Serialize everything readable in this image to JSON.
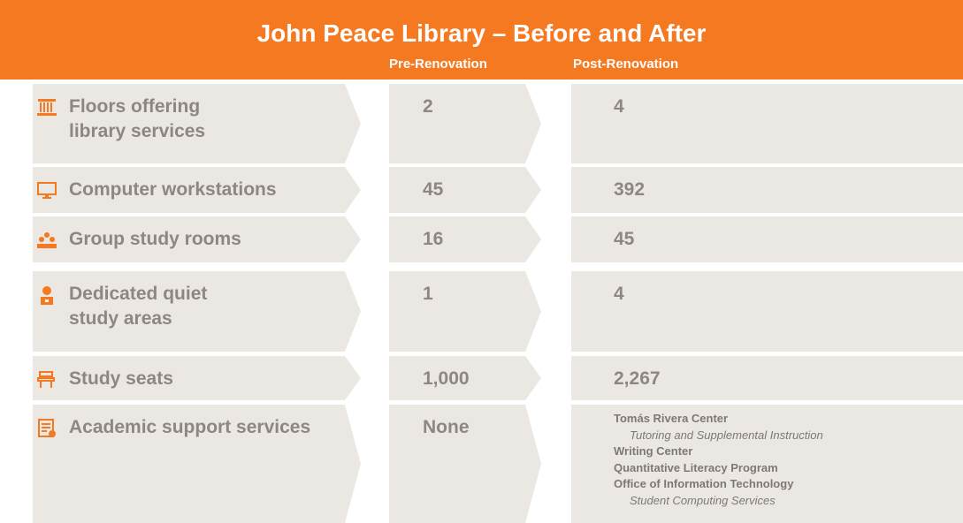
{
  "title": "John Peace Library – Before and After",
  "columns": [
    "Pre-Renovation",
    "Post-Renovation"
  ],
  "rows": [
    {
      "label": [
        "Floors offering",
        "library services"
      ],
      "pre": "2",
      "post": "4"
    },
    {
      "label": [
        "Computer workstations"
      ],
      "pre": "45",
      "post": "392"
    },
    {
      "label": [
        "Group study rooms"
      ],
      "pre": "16",
      "post": "45"
    },
    {
      "label": [
        "Dedicated quiet",
        "study areas"
      ],
      "pre": "1",
      "post": "4"
    },
    {
      "label": [
        "Study seats"
      ],
      "pre": "1,000",
      "post": "2,267"
    },
    {
      "label": [
        "Academic support services"
      ],
      "pre": "None",
      "post_items": [
        {
          "name": "Tomás Rivera Center",
          "sub": "Tutoring and Supplemental Instruction"
        },
        {
          "name": "Writing Center"
        },
        {
          "name": "Quantitative Literacy Program"
        },
        {
          "name": "Office of Information Technology",
          "sub": "Student Computing Services"
        }
      ]
    }
  ]
}
